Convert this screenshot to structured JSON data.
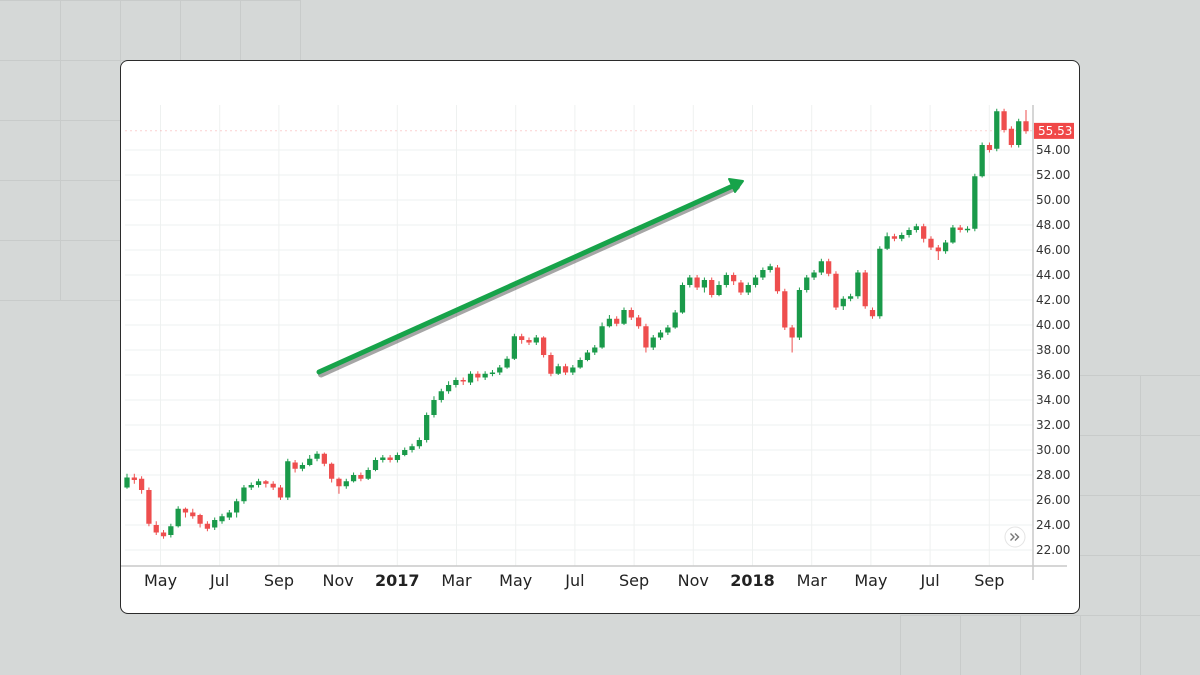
{
  "colors": {
    "up": "#1a9a4a",
    "down": "#ee4e4e",
    "arrow": "#17a34a",
    "grid": "#eef1f0",
    "axis": "#c9c9c9",
    "price_tag": "#f04848"
  },
  "chart_data": {
    "type": "candlestick",
    "title": "",
    "xlabel": "",
    "ylabel": "",
    "ylim": [
      21,
      57.8
    ],
    "y_ticks": [
      "22.00",
      "24.00",
      "26.00",
      "28.00",
      "30.00",
      "32.00",
      "34.00",
      "36.00",
      "38.00",
      "40.00",
      "42.00",
      "44.00",
      "46.00",
      "48.00",
      "50.00",
      "52.00",
      "54.00"
    ],
    "x_ticks": [
      {
        "label": "May",
        "year": false
      },
      {
        "label": "Jul",
        "year": false
      },
      {
        "label": "Sep",
        "year": false
      },
      {
        "label": "Nov",
        "year": false
      },
      {
        "label": "2017",
        "year": true
      },
      {
        "label": "Mar",
        "year": false
      },
      {
        "label": "May",
        "year": false
      },
      {
        "label": "Jul",
        "year": false
      },
      {
        "label": "Sep",
        "year": false
      },
      {
        "label": "Nov",
        "year": false
      },
      {
        "label": "2018",
        "year": true
      },
      {
        "label": "Mar",
        "year": false
      },
      {
        "label": "May",
        "year": false
      },
      {
        "label": "Jul",
        "year": false
      },
      {
        "label": "Sep",
        "year": false
      }
    ],
    "last_price": "55.53",
    "grid": true,
    "candles": [
      [
        27.0,
        27.8,
        28.1,
        26.9
      ],
      [
        27.8,
        27.6,
        28.1,
        27.3
      ],
      [
        27.7,
        26.8,
        27.9,
        26.5
      ],
      [
        26.8,
        24.1,
        27.0,
        23.9
      ],
      [
        24.0,
        23.4,
        24.3,
        23.2
      ],
      [
        23.4,
        23.1,
        23.6,
        22.9
      ],
      [
        23.2,
        23.9,
        24.1,
        23.0
      ],
      [
        23.9,
        25.3,
        25.5,
        23.8
      ],
      [
        25.3,
        25.0,
        25.4,
        24.6
      ],
      [
        25.0,
        24.7,
        25.3,
        24.5
      ],
      [
        24.8,
        24.1,
        24.9,
        23.8
      ],
      [
        24.1,
        23.7,
        24.3,
        23.5
      ],
      [
        23.8,
        24.4,
        24.6,
        23.6
      ],
      [
        24.3,
        24.7,
        24.9,
        24.1
      ],
      [
        24.6,
        25.0,
        25.2,
        24.4
      ],
      [
        25.0,
        25.9,
        26.1,
        24.6
      ],
      [
        25.9,
        27.0,
        27.2,
        25.7
      ],
      [
        27.0,
        27.2,
        27.4,
        26.8
      ],
      [
        27.2,
        27.5,
        27.7,
        27.0
      ],
      [
        27.5,
        27.3,
        27.6,
        27.0
      ],
      [
        27.3,
        27.0,
        27.5,
        26.8
      ],
      [
        27.0,
        26.2,
        27.2,
        26.0
      ],
      [
        26.2,
        29.1,
        29.3,
        26.0
      ],
      [
        29.0,
        28.5,
        29.2,
        28.2
      ],
      [
        28.5,
        28.8,
        29.0,
        28.3
      ],
      [
        28.8,
        29.3,
        29.6,
        28.7
      ],
      [
        29.3,
        29.7,
        29.9,
        29.1
      ],
      [
        29.7,
        28.9,
        29.8,
        28.7
      ],
      [
        28.9,
        27.7,
        29.0,
        27.4
      ],
      [
        27.7,
        27.1,
        27.8,
        26.5
      ],
      [
        27.1,
        27.5,
        27.7,
        26.9
      ],
      [
        27.5,
        28.0,
        28.2,
        27.4
      ],
      [
        28.0,
        27.7,
        28.2,
        27.5
      ],
      [
        27.7,
        28.4,
        28.6,
        27.6
      ],
      [
        28.4,
        29.2,
        29.4,
        28.3
      ],
      [
        29.2,
        29.4,
        29.6,
        29.0
      ],
      [
        29.4,
        29.2,
        29.6,
        29.0
      ],
      [
        29.2,
        29.6,
        29.8,
        29.0
      ],
      [
        29.6,
        30.0,
        30.2,
        29.5
      ],
      [
        30.0,
        30.3,
        30.5,
        29.8
      ],
      [
        30.3,
        30.8,
        31.0,
        30.1
      ],
      [
        30.8,
        32.8,
        33.0,
        30.6
      ],
      [
        32.8,
        34.0,
        34.3,
        32.6
      ],
      [
        34.0,
        34.7,
        34.9,
        33.8
      ],
      [
        34.7,
        35.2,
        35.5,
        34.5
      ],
      [
        35.2,
        35.6,
        35.8,
        35.0
      ],
      [
        35.6,
        35.5,
        35.8,
        35.2
      ],
      [
        35.4,
        36.1,
        36.3,
        35.2
      ],
      [
        36.1,
        35.8,
        36.3,
        35.5
      ],
      [
        35.8,
        36.1,
        36.3,
        35.6
      ],
      [
        36.1,
        36.2,
        36.4,
        35.9
      ],
      [
        36.2,
        36.6,
        36.8,
        36.0
      ],
      [
        36.6,
        37.3,
        37.5,
        36.5
      ],
      [
        37.3,
        39.1,
        39.3,
        37.2
      ],
      [
        39.1,
        38.8,
        39.3,
        38.5
      ],
      [
        38.8,
        38.6,
        39.0,
        38.4
      ],
      [
        38.6,
        39.0,
        39.2,
        38.4
      ],
      [
        39.0,
        37.6,
        39.1,
        37.4
      ],
      [
        37.6,
        36.1,
        37.8,
        35.9
      ],
      [
        36.1,
        36.7,
        36.9,
        36.0
      ],
      [
        36.7,
        36.2,
        36.9,
        36.0
      ],
      [
        36.2,
        36.6,
        36.8,
        36.0
      ],
      [
        36.6,
        37.2,
        37.4,
        36.5
      ],
      [
        37.2,
        37.8,
        38.0,
        37.1
      ],
      [
        37.8,
        38.2,
        38.4,
        37.6
      ],
      [
        38.2,
        39.9,
        40.2,
        38.1
      ],
      [
        39.9,
        40.5,
        40.8,
        39.8
      ],
      [
        40.5,
        40.1,
        40.7,
        39.9
      ],
      [
        40.1,
        41.2,
        41.4,
        40.0
      ],
      [
        41.2,
        40.6,
        41.4,
        40.4
      ],
      [
        40.6,
        39.9,
        40.8,
        39.7
      ],
      [
        39.9,
        38.2,
        40.1,
        37.8
      ],
      [
        38.2,
        39.0,
        39.2,
        38.0
      ],
      [
        39.0,
        39.4,
        39.6,
        38.8
      ],
      [
        39.4,
        39.8,
        40.0,
        39.2
      ],
      [
        39.8,
        41.0,
        41.2,
        39.7
      ],
      [
        41.0,
        43.2,
        43.4,
        40.9
      ],
      [
        43.2,
        43.8,
        44.0,
        43.0
      ],
      [
        43.8,
        43.0,
        44.0,
        42.8
      ],
      [
        43.0,
        43.6,
        43.8,
        42.6
      ],
      [
        43.6,
        42.4,
        43.8,
        42.2
      ],
      [
        42.4,
        43.2,
        43.5,
        42.3
      ],
      [
        43.2,
        44.0,
        44.2,
        43.0
      ],
      [
        44.0,
        43.5,
        44.2,
        43.2
      ],
      [
        43.4,
        42.6,
        43.6,
        42.4
      ],
      [
        42.6,
        43.2,
        43.4,
        42.4
      ],
      [
        43.2,
        43.8,
        44.0,
        43.0
      ],
      [
        43.8,
        44.4,
        44.6,
        43.6
      ],
      [
        44.4,
        44.7,
        44.9,
        44.2
      ],
      [
        44.6,
        42.7,
        44.8,
        42.5
      ],
      [
        42.7,
        39.8,
        42.9,
        39.6
      ],
      [
        39.8,
        39.0,
        40.0,
        37.8
      ],
      [
        39.0,
        42.8,
        43.0,
        38.8
      ],
      [
        42.8,
        43.8,
        44.0,
        42.6
      ],
      [
        43.8,
        44.2,
        44.4,
        43.6
      ],
      [
        44.2,
        45.1,
        45.3,
        44.0
      ],
      [
        45.1,
        44.1,
        45.3,
        43.9
      ],
      [
        44.1,
        41.4,
        44.3,
        41.2
      ],
      [
        41.5,
        42.1,
        42.3,
        41.2
      ],
      [
        42.1,
        42.3,
        42.5,
        41.9
      ],
      [
        42.3,
        44.2,
        44.4,
        42.1
      ],
      [
        44.2,
        41.5,
        44.4,
        41.3
      ],
      [
        41.2,
        40.7,
        41.4,
        40.5
      ],
      [
        40.7,
        46.1,
        46.3,
        40.5
      ],
      [
        46.1,
        47.1,
        47.4,
        46.0
      ],
      [
        47.1,
        46.9,
        47.3,
        46.7
      ],
      [
        46.9,
        47.2,
        47.4,
        46.7
      ],
      [
        47.2,
        47.6,
        47.8,
        47.0
      ],
      [
        47.6,
        47.9,
        48.1,
        47.4
      ],
      [
        47.9,
        46.9,
        48.1,
        46.6
      ],
      [
        46.9,
        46.2,
        47.1,
        46.0
      ],
      [
        46.2,
        45.9,
        46.4,
        45.2
      ],
      [
        45.9,
        46.6,
        46.8,
        45.7
      ],
      [
        46.6,
        47.8,
        48.0,
        46.5
      ],
      [
        47.8,
        47.6,
        48.0,
        47.4
      ],
      [
        47.6,
        47.7,
        47.9,
        47.4
      ],
      [
        47.7,
        51.9,
        52.1,
        47.5
      ],
      [
        51.9,
        54.4,
        54.6,
        51.8
      ],
      [
        54.4,
        54.0,
        54.6,
        53.8
      ],
      [
        54.1,
        57.1,
        57.3,
        53.9
      ],
      [
        57.1,
        55.6,
        57.3,
        55.4
      ],
      [
        55.7,
        54.4,
        55.9,
        54.2
      ],
      [
        54.4,
        56.3,
        56.5,
        54.2
      ],
      [
        56.3,
        55.5,
        57.2,
        55.3
      ]
    ]
  }
}
